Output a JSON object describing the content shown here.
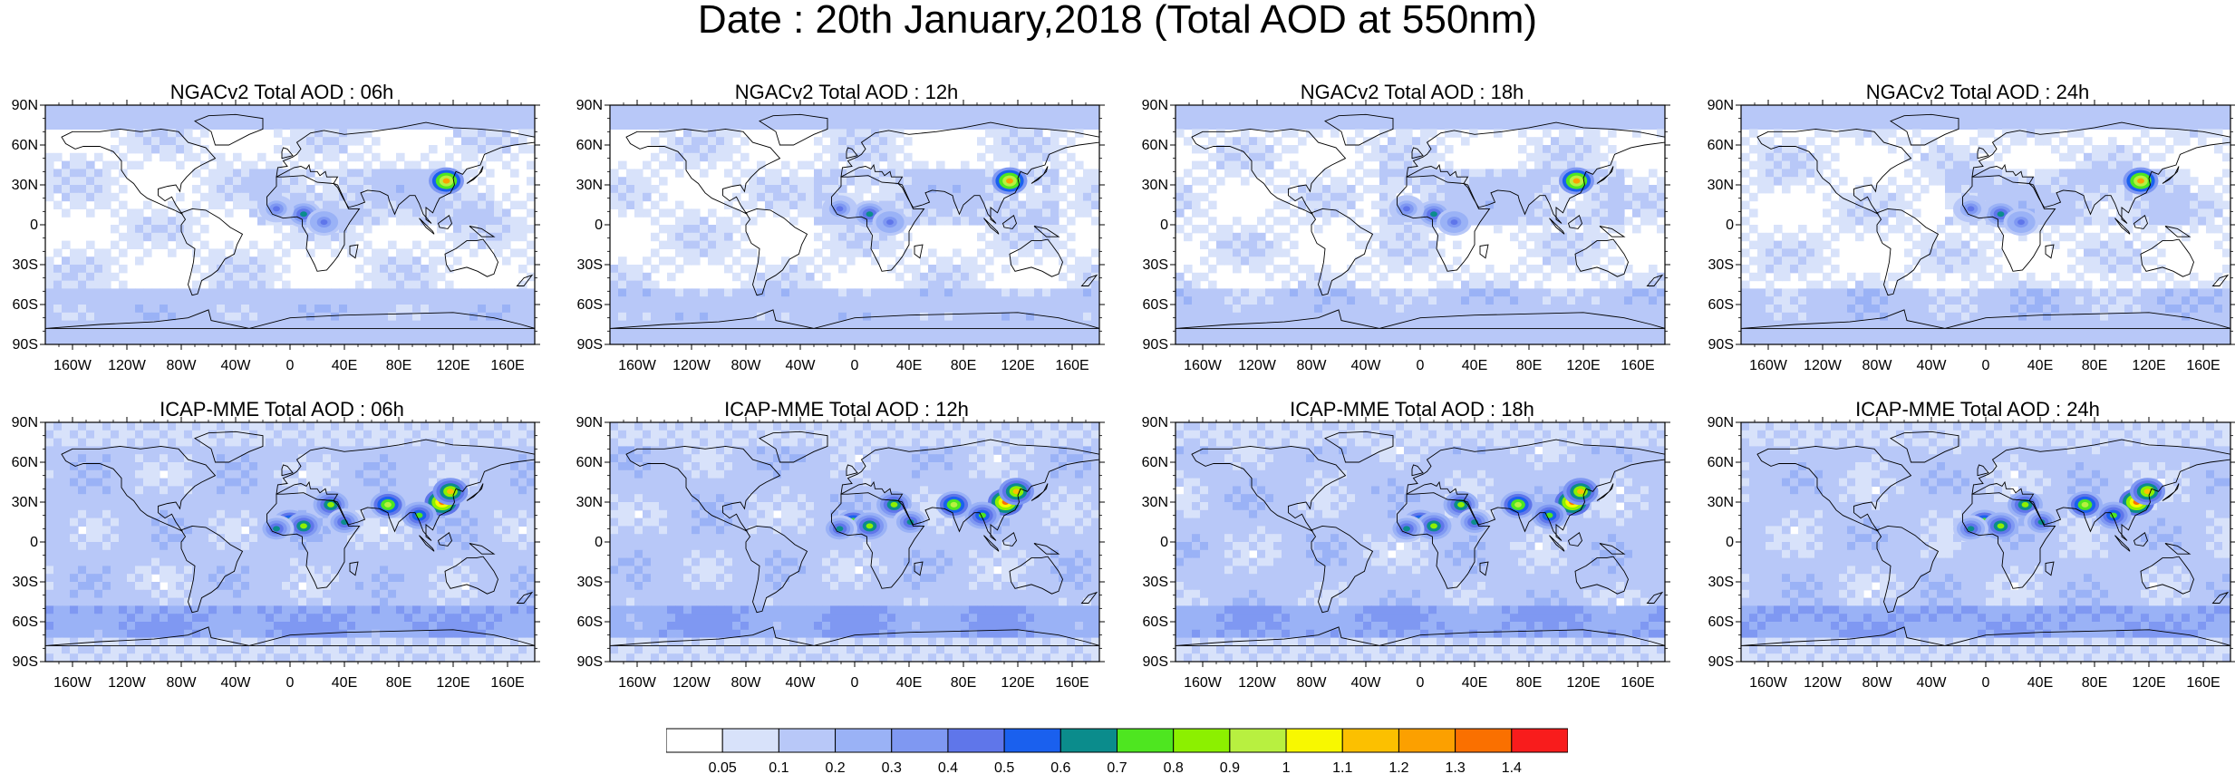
{
  "title": "Date : 20th January,2018 (Total AOD at 550nm)",
  "panels": [
    {
      "title": "NGACv2 Total AOD : 06h",
      "model": "ngac"
    },
    {
      "title": "NGACv2 Total AOD : 12h",
      "model": "ngac"
    },
    {
      "title": "NGACv2 Total AOD : 18h",
      "model": "ngac"
    },
    {
      "title": "NGACv2 Total AOD : 24h",
      "model": "ngac"
    },
    {
      "title": "ICAP-MME Total AOD : 06h",
      "model": "icap"
    },
    {
      "title": "ICAP-MME Total AOD : 12h",
      "model": "icap"
    },
    {
      "title": "ICAP-MME Total AOD : 18h",
      "model": "icap"
    },
    {
      "title": "ICAP-MME Total AOD : 24h",
      "model": "icap"
    }
  ],
  "lat_ticks": [
    "90N",
    "60N",
    "30N",
    "0",
    "30S",
    "60S",
    "90S"
  ],
  "lat_values": [
    90,
    60,
    30,
    0,
    -30,
    -60,
    -90
  ],
  "lon_ticks": [
    "160W",
    "120W",
    "80W",
    "40W",
    "0",
    "40E",
    "80E",
    "120E",
    "160E"
  ],
  "lon_values": [
    -160,
    -120,
    -80,
    -40,
    0,
    40,
    80,
    120,
    160
  ],
  "colorbar": {
    "labels": [
      "0.05",
      "0.1",
      "0.2",
      "0.3",
      "0.4",
      "0.5",
      "0.6",
      "0.7",
      "0.8",
      "0.9",
      "1",
      "1.1",
      "1.2",
      "1.3",
      "1.4"
    ],
    "thresholds": [
      0.05,
      0.1,
      0.2,
      0.3,
      0.4,
      0.5,
      0.6,
      0.7,
      0.8,
      0.9,
      1,
      1.1,
      1.2,
      1.3,
      1.4
    ],
    "colors": [
      "#ffffff",
      "#d8e2fa",
      "#b8c8f8",
      "#9ab2f6",
      "#7f98f2",
      "#5f76ea",
      "#1a60ee",
      "#0b8c8c",
      "#4ee620",
      "#8cf000",
      "#b8f040",
      "#f8f800",
      "#fcc000",
      "#fca000",
      "#fa7000",
      "#f81c1c"
    ]
  }
}
